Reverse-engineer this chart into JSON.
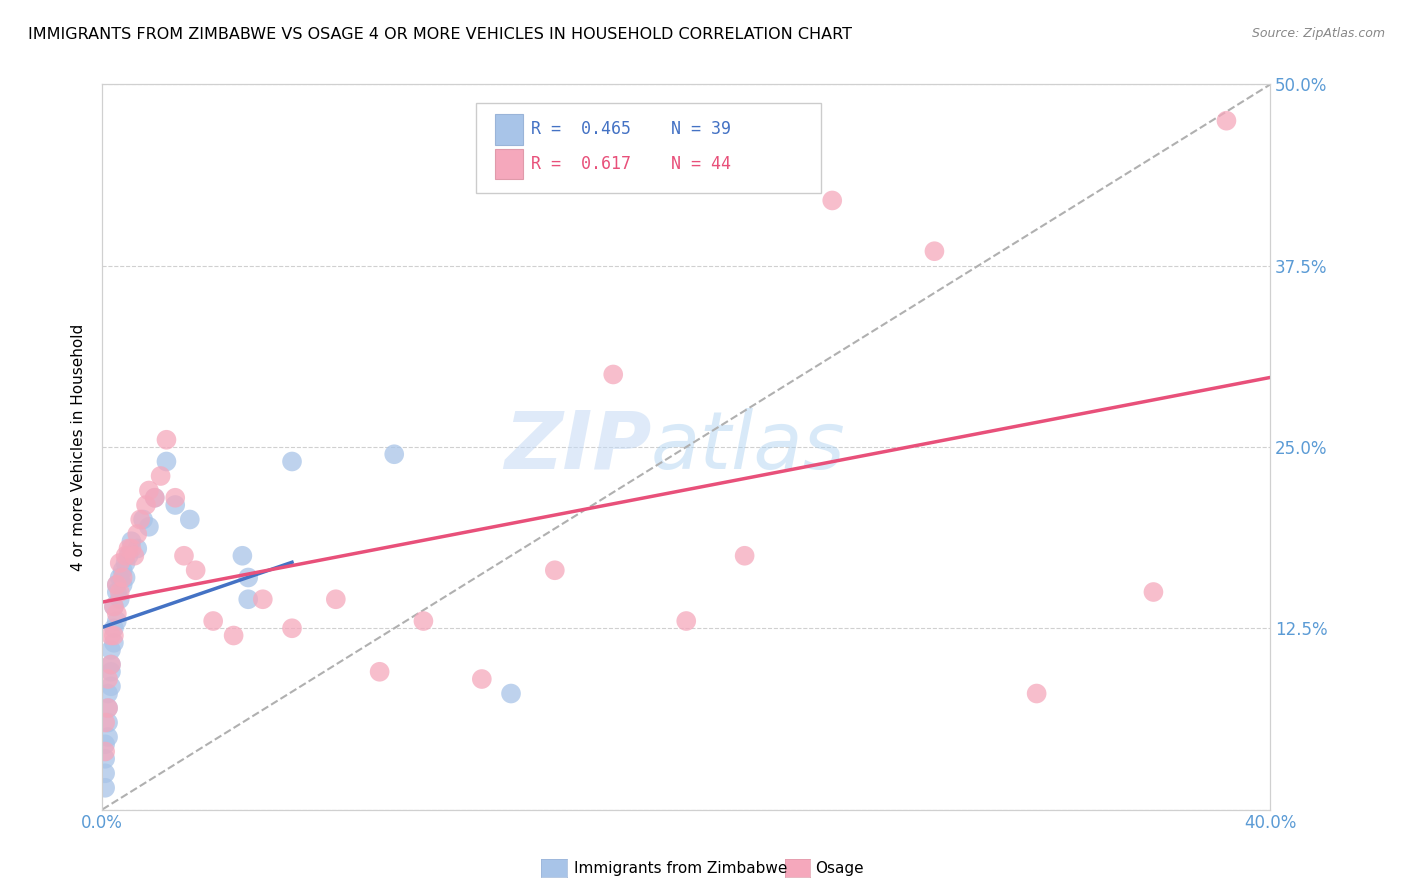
{
  "title": "IMMIGRANTS FROM ZIMBABWE VS OSAGE 4 OR MORE VEHICLES IN HOUSEHOLD CORRELATION CHART",
  "source": "Source: ZipAtlas.com",
  "ylabel": "4 or more Vehicles in Household",
  "xlim": [
    0.0,
    0.4
  ],
  "ylim": [
    0.0,
    0.5
  ],
  "xticks": [
    0.0,
    0.05,
    0.1,
    0.15,
    0.2,
    0.25,
    0.3,
    0.35,
    0.4
  ],
  "xticklabels": [
    "0.0%",
    "",
    "",
    "",
    "",
    "",
    "",
    "",
    "40.0%"
  ],
  "yticks": [
    0.0,
    0.125,
    0.25,
    0.375,
    0.5
  ],
  "yticklabels": [
    "",
    "12.5%",
    "25.0%",
    "37.5%",
    "50.0%"
  ],
  "blue_R": 0.465,
  "blue_N": 39,
  "pink_R": 0.617,
  "pink_N": 44,
  "blue_color": "#a8c4e8",
  "pink_color": "#f5a8bc",
  "blue_line_color": "#4472c4",
  "pink_line_color": "#e8507a",
  "diag_color": "#b0b0b0",
  "watermark_zip": "ZIP",
  "watermark_atlas": "atlas",
  "legend_label_blue": "Immigrants from Zimbabwe",
  "legend_label_pink": "Osage",
  "title_fontsize": 11.5,
  "tick_color": "#5b9bd5",
  "blue_scatter_x": [
    0.001,
    0.001,
    0.001,
    0.001,
    0.002,
    0.002,
    0.002,
    0.002,
    0.003,
    0.003,
    0.003,
    0.003,
    0.004,
    0.004,
    0.004,
    0.005,
    0.005,
    0.005,
    0.006,
    0.006,
    0.007,
    0.007,
    0.008,
    0.008,
    0.009,
    0.01,
    0.012,
    0.014,
    0.016,
    0.018,
    0.025,
    0.03,
    0.048,
    0.05,
    0.065,
    0.1,
    0.14,
    0.05,
    0.022
  ],
  "blue_scatter_y": [
    0.015,
    0.025,
    0.035,
    0.045,
    0.05,
    0.06,
    0.07,
    0.08,
    0.085,
    0.095,
    0.1,
    0.11,
    0.115,
    0.125,
    0.14,
    0.13,
    0.15,
    0.155,
    0.145,
    0.16,
    0.155,
    0.165,
    0.16,
    0.17,
    0.175,
    0.185,
    0.18,
    0.2,
    0.195,
    0.215,
    0.21,
    0.2,
    0.175,
    0.16,
    0.24,
    0.245,
    0.08,
    0.145,
    0.24
  ],
  "pink_scatter_x": [
    0.001,
    0.001,
    0.002,
    0.002,
    0.003,
    0.003,
    0.004,
    0.004,
    0.005,
    0.005,
    0.006,
    0.006,
    0.007,
    0.008,
    0.009,
    0.01,
    0.011,
    0.012,
    0.013,
    0.015,
    0.016,
    0.018,
    0.02,
    0.022,
    0.025,
    0.028,
    0.032,
    0.038,
    0.045,
    0.055,
    0.065,
    0.08,
    0.095,
    0.11,
    0.13,
    0.155,
    0.175,
    0.2,
    0.22,
    0.25,
    0.285,
    0.32,
    0.36,
    0.385
  ],
  "pink_scatter_y": [
    0.04,
    0.06,
    0.07,
    0.09,
    0.1,
    0.12,
    0.12,
    0.14,
    0.135,
    0.155,
    0.15,
    0.17,
    0.16,
    0.175,
    0.18,
    0.18,
    0.175,
    0.19,
    0.2,
    0.21,
    0.22,
    0.215,
    0.23,
    0.255,
    0.215,
    0.175,
    0.165,
    0.13,
    0.12,
    0.145,
    0.125,
    0.145,
    0.095,
    0.13,
    0.09,
    0.165,
    0.3,
    0.13,
    0.175,
    0.42,
    0.385,
    0.08,
    0.15,
    0.475
  ]
}
